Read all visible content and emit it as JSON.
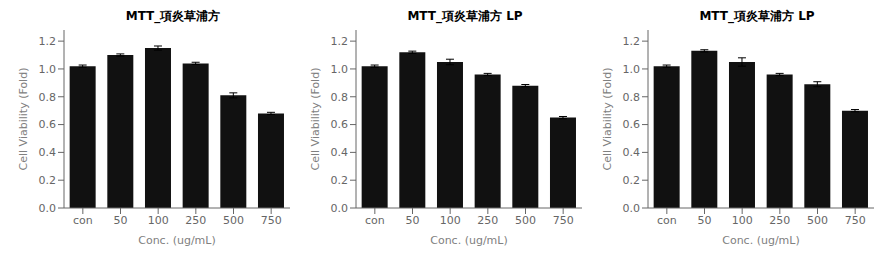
{
  "chart_data": [
    {
      "type": "bar",
      "title": "MTT_項炎草浦方",
      "xlabel": "Conc. (ug/mL)",
      "ylabel": "Cell Viability (Fold)",
      "categories": [
        "con",
        "50",
        "100",
        "250",
        "500",
        "750"
      ],
      "values": [
        1.02,
        1.1,
        1.15,
        1.04,
        0.81,
        0.68
      ],
      "errors": [
        0.008,
        0.008,
        0.015,
        0.008,
        0.018,
        0.008
      ],
      "color": "#111111",
      "ylim": [
        0.0,
        1.28
      ],
      "yticks": [
        {
          "value": 0.0,
          "label": "0.0"
        },
        0.2,
        0.4,
        0.6,
        0.8,
        {
          "value": 1.0,
          "label": "1.0"
        },
        1.2
      ],
      "grid": false
    },
    {
      "type": "bar",
      "title": "MTT_項炎草浦方 LP",
      "xlabel": "Conc. (ug/mL)",
      "ylabel": "Cell Viability (Fold)",
      "categories": [
        "con",
        "50",
        "100",
        "250",
        "500",
        "750"
      ],
      "values": [
        1.02,
        1.12,
        1.05,
        0.96,
        0.88,
        0.65
      ],
      "errors": [
        0.008,
        0.008,
        0.02,
        0.008,
        0.008,
        0.008
      ],
      "color": "#111111",
      "ylim": [
        0.0,
        1.28
      ],
      "yticks": [
        {
          "value": 0.0,
          "label": "0.0"
        },
        0.2,
        0.4,
        0.6,
        0.8,
        {
          "value": 1.0,
          "label": "1.0"
        },
        1.2
      ],
      "grid": false
    },
    {
      "type": "bar",
      "title": "MTT_項炎草浦方 LP",
      "xlabel": "Conc. (ug/mL)",
      "ylabel": "Cell Viability (Fold)",
      "categories": [
        "con",
        "50",
        "100",
        "250",
        "500",
        "750"
      ],
      "values": [
        1.02,
        1.13,
        1.05,
        0.96,
        0.89,
        0.7
      ],
      "errors": [
        0.008,
        0.008,
        0.03,
        0.008,
        0.018,
        0.008
      ],
      "color": "#111111",
      "ylim": [
        0.0,
        1.28
      ],
      "yticks": [
        {
          "value": 0.0,
          "label": "0.0"
        },
        0.2,
        0.4,
        0.6,
        0.8,
        {
          "value": 1.0,
          "label": "1.0"
        },
        1.2
      ],
      "grid": false
    }
  ]
}
